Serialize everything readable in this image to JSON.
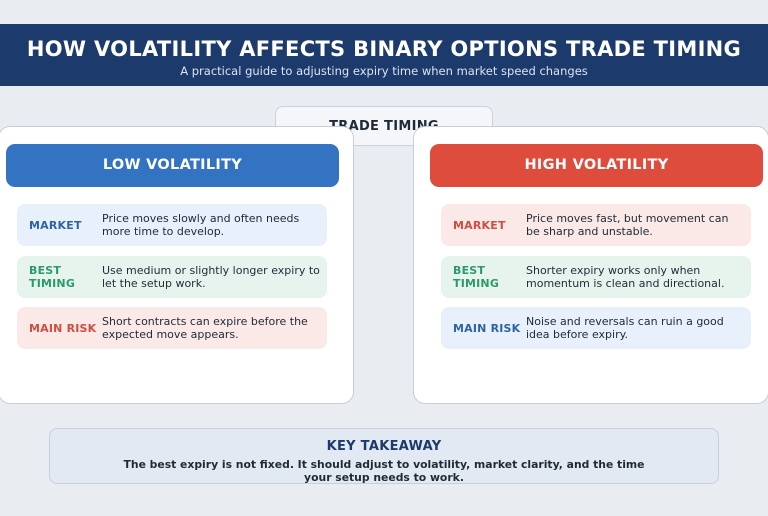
{
  "header": {
    "title": "HOW VOLATILITY AFFECTS BINARY OPTIONS TRADE TIMING",
    "subtitle": "A practical guide to adjusting expiry time when market speed changes"
  },
  "center_tab": {
    "label": "TRADE TIMING"
  },
  "panels": {
    "low": {
      "title": "LOW VOLATILITY",
      "color": "#3473c1",
      "rows": [
        {
          "label": "MARKET",
          "text": "Price moves slowly and often needs more time to develop."
        },
        {
          "label": "BEST TIMING",
          "text": "Use medium or slightly longer expiry to let the setup work."
        },
        {
          "label": "MAIN RISK",
          "text": "Short contracts can expire before the expected move appears."
        }
      ]
    },
    "high": {
      "title": "HIGH VOLATILITY",
      "color": "#dd4c3d",
      "rows": [
        {
          "label": "MARKET",
          "text": "Price moves fast, but movement can be sharp and unstable."
        },
        {
          "label": "BEST TIMING",
          "text": "Shorter expiry works only when momentum is clean and directional."
        },
        {
          "label": "MAIN RISK",
          "text": "Noise and reversals can ruin a good idea before expiry."
        }
      ]
    }
  },
  "takeaway": {
    "title": "KEY TAKEAWAY",
    "text": "The best expiry is not fixed. It should adjust to volatility, market clarity, and the time your setup needs to work."
  }
}
